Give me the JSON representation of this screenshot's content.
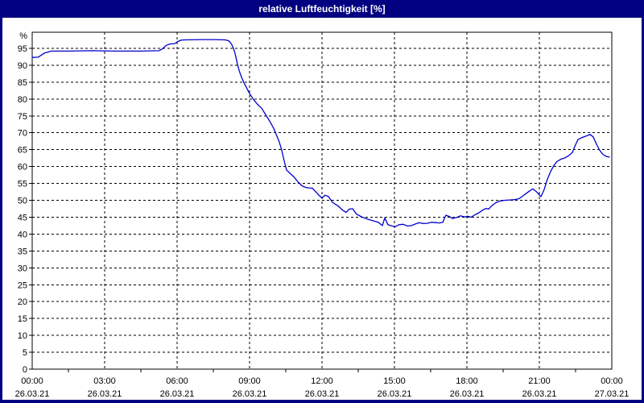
{
  "window": {
    "title": "relative Luftfeuchtigkeit [%]"
  },
  "colors": {
    "title_bar": "#000080",
    "window_border": "#000080",
    "title_text": "#ffffff",
    "plot_background": "#ffffff",
    "grid": "#000000",
    "axis_text": "#000000",
    "curve": "#0000cc"
  },
  "chart_data": {
    "type": "line",
    "title": "relative Luftfeuchtigkeit [%]",
    "unit_label": "%",
    "ylim": [
      0,
      100
    ],
    "y_tick_step": 5,
    "y_ticks": [
      95,
      90,
      85,
      80,
      75,
      70,
      65,
      60,
      55,
      50,
      45,
      40,
      35,
      30,
      25,
      20,
      15,
      10,
      5,
      0
    ],
    "x_range_hours": [
      0,
      24
    ],
    "x_tick_step_hours": 3,
    "x_ticks": [
      {
        "time": "00:00",
        "date": "26.03.21"
      },
      {
        "time": "03:00",
        "date": "26.03.21"
      },
      {
        "time": "06:00",
        "date": "26.03.21"
      },
      {
        "time": "09:00",
        "date": "26.03.21"
      },
      {
        "time": "12:00",
        "date": "26.03.21"
      },
      {
        "time": "15:00",
        "date": "26.03.21"
      },
      {
        "time": "18:00",
        "date": "26.03.21"
      },
      {
        "time": "21:00",
        "date": "26.03.21"
      },
      {
        "time": "00:00",
        "date": "27.03.21"
      }
    ],
    "grid": "dashed, both axes",
    "legend": "none",
    "series": [
      {
        "name": "relative Luftfeuchtigkeit [%]",
        "color": "#0000cc",
        "points": [
          [
            0,
            92.3
          ],
          [
            0.25,
            92.4
          ],
          [
            0.5,
            93.6
          ],
          [
            0.8,
            94.2
          ],
          [
            1.5,
            94.2
          ],
          [
            2.5,
            94.3
          ],
          [
            3.5,
            94.2
          ],
          [
            4.5,
            94.2
          ],
          [
            5.25,
            94.3
          ],
          [
            5.4,
            94.9
          ],
          [
            5.55,
            95.9
          ],
          [
            5.7,
            96.3
          ],
          [
            5.9,
            96.4
          ],
          [
            6,
            96.9
          ],
          [
            6.15,
            97.4
          ],
          [
            6.3,
            97.5
          ],
          [
            7,
            97.6
          ],
          [
            7.6,
            97.6
          ],
          [
            8,
            97.5
          ],
          [
            8.15,
            97.2
          ],
          [
            8.25,
            96.3
          ],
          [
            8.33,
            95.1
          ],
          [
            8.4,
            93.5
          ],
          [
            8.5,
            90.3
          ],
          [
            8.57,
            88.4
          ],
          [
            8.67,
            86.4
          ],
          [
            8.77,
            84.8
          ],
          [
            8.9,
            83
          ],
          [
            9,
            81.6
          ],
          [
            9.17,
            79.8
          ],
          [
            9.33,
            78.4
          ],
          [
            9.5,
            77.3
          ],
          [
            9.67,
            75.3
          ],
          [
            9.83,
            73.5
          ],
          [
            10,
            71.3
          ],
          [
            10.23,
            67.3
          ],
          [
            10.33,
            64.9
          ],
          [
            10.43,
            61.8
          ],
          [
            10.53,
            59
          ],
          [
            10.67,
            58
          ],
          [
            10.83,
            57
          ],
          [
            11,
            55.5
          ],
          [
            11.17,
            54.3
          ],
          [
            11.33,
            53.8
          ],
          [
            11.5,
            53.6
          ],
          [
            11.6,
            53.6
          ],
          [
            11.73,
            52.6
          ],
          [
            11.87,
            51.5
          ],
          [
            12,
            50.7
          ],
          [
            12.13,
            51.5
          ],
          [
            12.27,
            51.1
          ],
          [
            12.43,
            49.4
          ],
          [
            12.67,
            48.3
          ],
          [
            12.87,
            47
          ],
          [
            13,
            46.4
          ],
          [
            13.13,
            47.4
          ],
          [
            13.27,
            47.5
          ],
          [
            13.43,
            45.9
          ],
          [
            13.67,
            45
          ],
          [
            13.9,
            44.4
          ],
          [
            14.1,
            44
          ],
          [
            14.33,
            43.5
          ],
          [
            14.5,
            42.5
          ],
          [
            14.6,
            44.8
          ],
          [
            14.73,
            42.8
          ],
          [
            14.9,
            42.4
          ],
          [
            15.03,
            42.2
          ],
          [
            15.2,
            42.8
          ],
          [
            15.37,
            42.9
          ],
          [
            15.53,
            42.4
          ],
          [
            15.7,
            42.5
          ],
          [
            15.87,
            43
          ],
          [
            16.03,
            43.4
          ],
          [
            16.2,
            43.1
          ],
          [
            16.37,
            43.2
          ],
          [
            16.53,
            43.5
          ],
          [
            16.7,
            43.4
          ],
          [
            16.87,
            43.3
          ],
          [
            17,
            43.5
          ],
          [
            17.13,
            45.6
          ],
          [
            17.27,
            45.2
          ],
          [
            17.4,
            44.6
          ],
          [
            17.57,
            44.9
          ],
          [
            17.73,
            45.4
          ],
          [
            17.9,
            45.1
          ],
          [
            18.03,
            45.3
          ],
          [
            18.17,
            45
          ],
          [
            18.33,
            45.7
          ],
          [
            18.5,
            46.3
          ],
          [
            18.67,
            47.2
          ],
          [
            18.8,
            47.6
          ],
          [
            18.9,
            47.4
          ],
          [
            19.03,
            48.4
          ],
          [
            19.2,
            49.3
          ],
          [
            19.37,
            49.8
          ],
          [
            19.57,
            50
          ],
          [
            19.77,
            50.1
          ],
          [
            19.97,
            50.2
          ],
          [
            20.17,
            50.5
          ],
          [
            20.3,
            51.2
          ],
          [
            20.47,
            52.1
          ],
          [
            20.6,
            52.8
          ],
          [
            20.73,
            53.4
          ],
          [
            20.87,
            52.6
          ],
          [
            21,
            51.6
          ],
          [
            21.07,
            51.1
          ],
          [
            21.2,
            53.2
          ],
          [
            21.33,
            56.2
          ],
          [
            21.47,
            58.6
          ],
          [
            21.6,
            60.3
          ],
          [
            21.73,
            61.5
          ],
          [
            21.9,
            62.2
          ],
          [
            22.07,
            62.6
          ],
          [
            22.23,
            63.3
          ],
          [
            22.37,
            64.2
          ],
          [
            22.47,
            66
          ],
          [
            22.6,
            68
          ],
          [
            22.77,
            68.6
          ],
          [
            22.93,
            69
          ],
          [
            23.1,
            69.5
          ],
          [
            23.23,
            68.8
          ],
          [
            23.37,
            66.6
          ],
          [
            23.5,
            64.8
          ],
          [
            23.63,
            63.6
          ],
          [
            23.77,
            63
          ],
          [
            23.9,
            62.8
          ]
        ]
      }
    ]
  }
}
